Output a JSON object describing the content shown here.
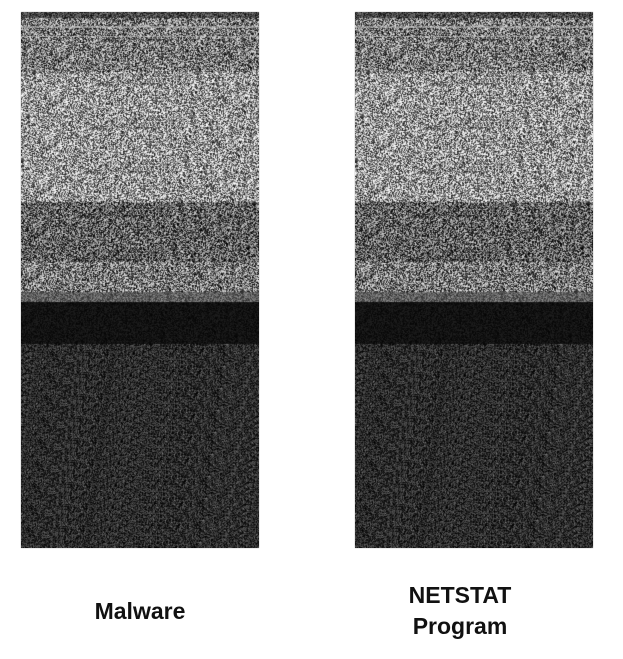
{
  "captions": {
    "left": "Malware",
    "right_line1": "NETSTAT",
    "right_line2": "Program"
  },
  "colors": {
    "background": "#ffffff",
    "caption_text": "#111111"
  }
}
